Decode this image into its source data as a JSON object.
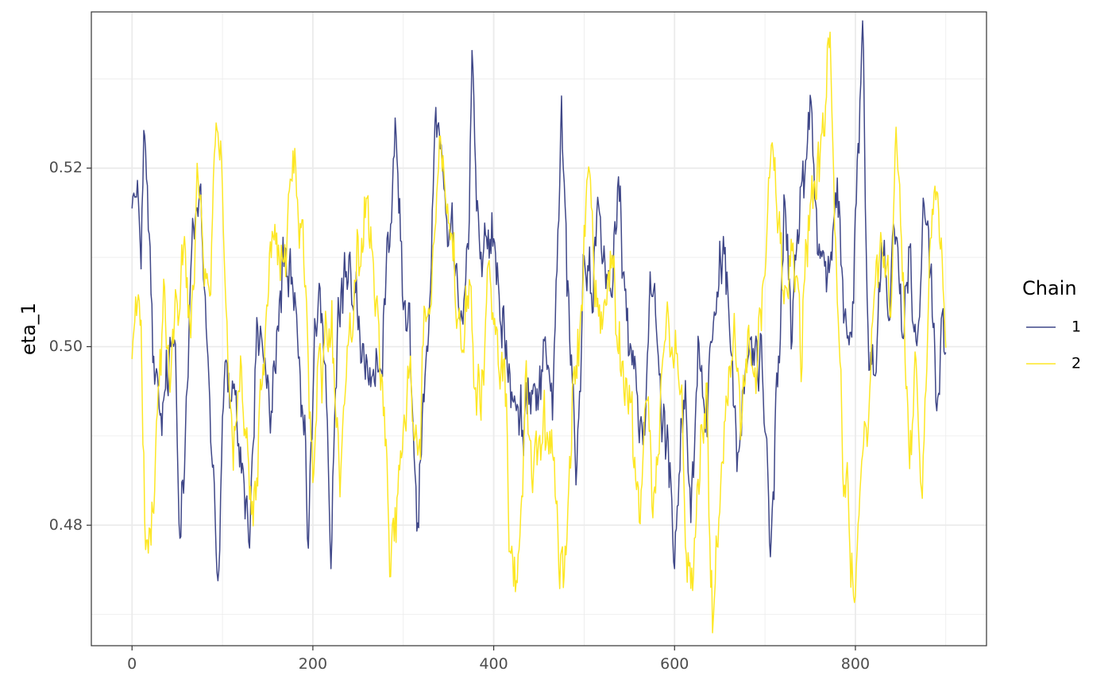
{
  "chart_data": {
    "type": "line",
    "title": "",
    "xlabel": "",
    "ylabel": "eta_1",
    "xlim": [
      -45,
      945
    ],
    "ylim": [
      0.4665,
      0.5375
    ],
    "x_ticks": [
      0,
      200,
      400,
      600,
      800
    ],
    "y_ticks": [
      0.48,
      0.5,
      0.52
    ],
    "x_tick_labels": [
      "0",
      "200",
      "400",
      "600",
      "800"
    ],
    "y_tick_labels": [
      "0.48",
      "0.50",
      "0.52"
    ],
    "grid": true,
    "legend": {
      "title": "Chain",
      "position": "right"
    },
    "n_iterations": 900,
    "series": [
      {
        "name": "1",
        "color": "#3f4788",
        "anchors": [
          [
            0,
            0.519
          ],
          [
            5,
            0.515
          ],
          [
            10,
            0.512
          ],
          [
            13,
            0.524
          ],
          [
            18,
            0.513
          ],
          [
            25,
            0.495
          ],
          [
            32,
            0.491
          ],
          [
            40,
            0.497
          ],
          [
            48,
            0.5
          ],
          [
            52,
            0.48
          ],
          [
            58,
            0.491
          ],
          [
            66,
            0.512
          ],
          [
            75,
            0.515
          ],
          [
            85,
            0.497
          ],
          [
            93,
            0.479
          ],
          [
            95,
            0.474
          ],
          [
            102,
            0.498
          ],
          [
            110,
            0.493
          ],
          [
            118,
            0.49
          ],
          [
            125,
            0.484
          ],
          [
            130,
            0.478
          ],
          [
            138,
            0.502
          ],
          [
            145,
            0.5
          ],
          [
            152,
            0.491
          ],
          [
            160,
            0.5
          ],
          [
            168,
            0.511
          ],
          [
            176,
            0.506
          ],
          [
            185,
            0.496
          ],
          [
            190,
            0.489
          ],
          [
            195,
            0.478
          ],
          [
            202,
            0.5
          ],
          [
            210,
            0.505
          ],
          [
            215,
            0.495
          ],
          [
            220,
            0.476
          ],
          [
            228,
            0.502
          ],
          [
            240,
            0.511
          ],
          [
            250,
            0.503
          ],
          [
            258,
            0.498
          ],
          [
            266,
            0.491
          ],
          [
            276,
            0.502
          ],
          [
            285,
            0.515
          ],
          [
            292,
            0.522
          ],
          [
            300,
            0.506
          ],
          [
            308,
            0.499
          ],
          [
            315,
            0.481
          ],
          [
            322,
            0.496
          ],
          [
            330,
            0.508
          ],
          [
            336,
            0.529
          ],
          [
            342,
            0.522
          ],
          [
            350,
            0.514
          ],
          [
            360,
            0.51
          ],
          [
            366,
            0.505
          ],
          [
            372,
            0.512
          ],
          [
            376,
            0.534
          ],
          [
            383,
            0.511
          ],
          [
            392,
            0.51
          ],
          [
            400,
            0.512
          ],
          [
            405,
            0.506
          ],
          [
            414,
            0.5
          ],
          [
            422,
            0.493
          ],
          [
            432,
            0.49
          ],
          [
            440,
            0.498
          ],
          [
            450,
            0.496
          ],
          [
            460,
            0.5
          ],
          [
            466,
            0.494
          ],
          [
            475,
            0.526
          ],
          [
            482,
            0.505
          ],
          [
            492,
            0.486
          ],
          [
            500,
            0.508
          ],
          [
            508,
            0.506
          ],
          [
            515,
            0.515
          ],
          [
            522,
            0.511
          ],
          [
            530,
            0.506
          ],
          [
            540,
            0.515
          ],
          [
            548,
            0.501
          ],
          [
            556,
            0.496
          ],
          [
            565,
            0.49
          ],
          [
            575,
            0.51
          ],
          [
            585,
            0.497
          ],
          [
            594,
            0.488
          ],
          [
            600,
            0.477
          ],
          [
            606,
            0.491
          ],
          [
            612,
            0.497
          ],
          [
            618,
            0.479
          ],
          [
            626,
            0.502
          ],
          [
            634,
            0.485
          ],
          [
            640,
            0.498
          ],
          [
            648,
            0.509
          ],
          [
            656,
            0.509
          ],
          [
            662,
            0.502
          ],
          [
            670,
            0.485
          ],
          [
            680,
            0.499
          ],
          [
            690,
            0.5
          ],
          [
            698,
            0.497
          ],
          [
            706,
            0.48
          ],
          [
            714,
            0.496
          ],
          [
            722,
            0.515
          ],
          [
            730,
            0.501
          ],
          [
            742,
            0.521
          ],
          [
            750,
            0.526
          ],
          [
            758,
            0.512
          ],
          [
            766,
            0.508
          ],
          [
            772,
            0.511
          ],
          [
            780,
            0.517
          ],
          [
            788,
            0.504
          ],
          [
            795,
            0.497
          ],
          [
            802,
            0.519
          ],
          [
            808,
            0.533
          ],
          [
            815,
            0.499
          ],
          [
            822,
            0.498
          ],
          [
            830,
            0.513
          ],
          [
            838,
            0.505
          ],
          [
            845,
            0.518
          ],
          [
            852,
            0.5
          ],
          [
            860,
            0.511
          ],
          [
            868,
            0.499
          ],
          [
            876,
            0.518
          ],
          [
            884,
            0.508
          ],
          [
            890,
            0.492
          ],
          [
            895,
            0.508
          ],
          [
            900,
            0.503
          ]
        ]
      },
      {
        "name": "2",
        "color": "#fde725",
        "anchors": [
          [
            0,
            0.5
          ],
          [
            5,
            0.504
          ],
          [
            10,
            0.501
          ],
          [
            15,
            0.482
          ],
          [
            20,
            0.48
          ],
          [
            28,
            0.494
          ],
          [
            35,
            0.507
          ],
          [
            42,
            0.496
          ],
          [
            50,
            0.505
          ],
          [
            58,
            0.51
          ],
          [
            66,
            0.501
          ],
          [
            72,
            0.521
          ],
          [
            78,
            0.513
          ],
          [
            86,
            0.506
          ],
          [
            92,
            0.524
          ],
          [
            100,
            0.518
          ],
          [
            106,
            0.5
          ],
          [
            112,
            0.487
          ],
          [
            120,
            0.495
          ],
          [
            128,
            0.485
          ],
          [
            134,
            0.48
          ],
          [
            140,
            0.489
          ],
          [
            148,
            0.503
          ],
          [
            156,
            0.511
          ],
          [
            164,
            0.509
          ],
          [
            170,
            0.507
          ],
          [
            178,
            0.524
          ],
          [
            184,
            0.515
          ],
          [
            192,
            0.505
          ],
          [
            200,
            0.488
          ],
          [
            207,
            0.497
          ],
          [
            215,
            0.5
          ],
          [
            222,
            0.499
          ],
          [
            230,
            0.485
          ],
          [
            240,
            0.501
          ],
          [
            250,
            0.508
          ],
          [
            258,
            0.517
          ],
          [
            265,
            0.51
          ],
          [
            272,
            0.499
          ],
          [
            280,
            0.495
          ],
          [
            285,
            0.474
          ],
          [
            292,
            0.482
          ],
          [
            300,
            0.49
          ],
          [
            308,
            0.497
          ],
          [
            316,
            0.487
          ],
          [
            324,
            0.503
          ],
          [
            332,
            0.509
          ],
          [
            340,
            0.523
          ],
          [
            348,
            0.518
          ],
          [
            356,
            0.509
          ],
          [
            364,
            0.499
          ],
          [
            372,
            0.504
          ],
          [
            380,
            0.494
          ],
          [
            388,
            0.497
          ],
          [
            396,
            0.509
          ],
          [
            404,
            0.499
          ],
          [
            412,
            0.498
          ],
          [
            418,
            0.481
          ],
          [
            424,
            0.469
          ],
          [
            430,
            0.48
          ],
          [
            436,
            0.497
          ],
          [
            444,
            0.486
          ],
          [
            452,
            0.49
          ],
          [
            460,
            0.492
          ],
          [
            468,
            0.483
          ],
          [
            478,
            0.473
          ],
          [
            488,
            0.495
          ],
          [
            496,
            0.502
          ],
          [
            505,
            0.521
          ],
          [
            512,
            0.506
          ],
          [
            520,
            0.502
          ],
          [
            530,
            0.508
          ],
          [
            538,
            0.501
          ],
          [
            546,
            0.496
          ],
          [
            554,
            0.49
          ],
          [
            562,
            0.484
          ],
          [
            570,
            0.494
          ],
          [
            576,
            0.481
          ],
          [
            584,
            0.494
          ],
          [
            592,
            0.505
          ],
          [
            600,
            0.499
          ],
          [
            608,
            0.495
          ],
          [
            614,
            0.475
          ],
          [
            620,
            0.473
          ],
          [
            628,
            0.487
          ],
          [
            636,
            0.494
          ],
          [
            642,
            0.47
          ],
          [
            650,
            0.484
          ],
          [
            658,
            0.497
          ],
          [
            666,
            0.504
          ],
          [
            674,
            0.493
          ],
          [
            682,
            0.499
          ],
          [
            690,
            0.495
          ],
          [
            698,
            0.508
          ],
          [
            706,
            0.521
          ],
          [
            714,
            0.516
          ],
          [
            722,
            0.506
          ],
          [
            730,
            0.512
          ],
          [
            740,
            0.5
          ],
          [
            748,
            0.515
          ],
          [
            756,
            0.52
          ],
          [
            764,
            0.526
          ],
          [
            772,
            0.532
          ],
          [
            780,
            0.503
          ],
          [
            788,
            0.484
          ],
          [
            795,
            0.475
          ],
          [
            800,
            0.473
          ],
          [
            806,
            0.486
          ],
          [
            814,
            0.494
          ],
          [
            822,
            0.51
          ],
          [
            830,
            0.509
          ],
          [
            838,
            0.504
          ],
          [
            845,
            0.523
          ],
          [
            852,
            0.511
          ],
          [
            860,
            0.487
          ],
          [
            866,
            0.5
          ],
          [
            874,
            0.48
          ],
          [
            882,
            0.508
          ],
          [
            890,
            0.521
          ],
          [
            896,
            0.509
          ],
          [
            900,
            0.5
          ]
        ]
      }
    ]
  }
}
